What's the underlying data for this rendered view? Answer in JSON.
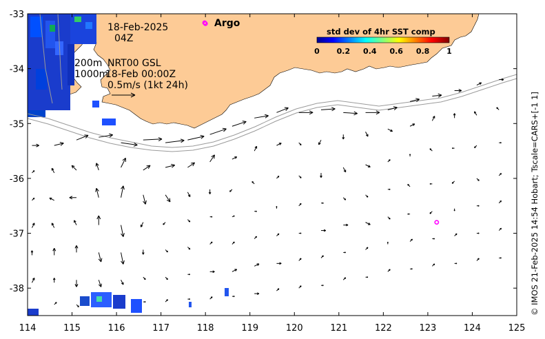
{
  "chart_data": {
    "type": "map",
    "xlim": [
      114,
      125
    ],
    "ylim": [
      -38.5,
      -33
    ],
    "x_ticks": [
      "114",
      "115",
      "116",
      "117",
      "118",
      "119",
      "120",
      "121",
      "122",
      "123",
      "124",
      "125"
    ],
    "y_ticks": [
      "-33",
      "-34",
      "-35",
      "-36",
      "-37",
      "-38"
    ],
    "annotations": {
      "date": "18-Feb-2025",
      "hour": "04Z",
      "depth_line1": "200m",
      "depth_line2": "1000m",
      "product": "NRT00 GSL",
      "vector_time": "18-Feb 00:00Z",
      "scale_label": "0.5m/s (1kt 24h)"
    },
    "colorbar": {
      "title": "std dev of 4hr SST comp",
      "ticks": [
        "0",
        "0.2",
        "0.4",
        "0.6",
        "0.8",
        "1"
      ],
      "colormap": "jet"
    },
    "argo": {
      "label": "Argo",
      "color": "#ff00ff",
      "floats": [
        {
          "lon": 118.0,
          "lat": -33.18
        },
        {
          "lon": 123.2,
          "lat": -36.8
        }
      ]
    },
    "credit": "© IMOS 21-Feb-2025 14:54 Hobart; Tscale=CARS+[-1 1]",
    "colors": {
      "land": "#fdcb96",
      "vectors": "#000000",
      "isobath": "#9a9a9a"
    },
    "current_vectors": [
      {
        "lon": 114.1,
        "lat": -35.4,
        "u": 0.15,
        "v": 0.0
      },
      {
        "lon": 114.6,
        "lat": -35.4,
        "u": 0.2,
        "v": 0.05
      },
      {
        "lon": 115.1,
        "lat": -35.3,
        "u": 0.25,
        "v": 0.1
      },
      {
        "lon": 115.6,
        "lat": -35.25,
        "u": 0.3,
        "v": 0.05
      },
      {
        "lon": 116.1,
        "lat": -35.35,
        "u": 0.35,
        "v": -0.05
      },
      {
        "lon": 116.6,
        "lat": -35.3,
        "u": 0.4,
        "v": 0.02
      },
      {
        "lon": 117.1,
        "lat": -35.35,
        "u": 0.4,
        "v": 0.05
      },
      {
        "lon": 117.6,
        "lat": -35.3,
        "u": 0.35,
        "v": 0.08
      },
      {
        "lon": 118.1,
        "lat": -35.2,
        "u": 0.35,
        "v": 0.12
      },
      {
        "lon": 118.6,
        "lat": -35.05,
        "u": 0.3,
        "v": 0.1
      },
      {
        "lon": 119.1,
        "lat": -34.9,
        "u": 0.3,
        "v": 0.05
      },
      {
        "lon": 119.6,
        "lat": -34.8,
        "u": 0.25,
        "v": 0.1
      },
      {
        "lon": 120.1,
        "lat": -34.8,
        "u": 0.3,
        "v": 0.0
      },
      {
        "lon": 120.6,
        "lat": -34.75,
        "u": 0.3,
        "v": 0.02
      },
      {
        "lon": 121.1,
        "lat": -34.8,
        "u": 0.3,
        "v": -0.02
      },
      {
        "lon": 121.6,
        "lat": -34.8,
        "u": 0.3,
        "v": 0.0
      },
      {
        "lon": 122.1,
        "lat": -34.75,
        "u": 0.2,
        "v": 0.05
      },
      {
        "lon": 122.6,
        "lat": -34.6,
        "u": 0.2,
        "v": 0.05
      },
      {
        "lon": 123.1,
        "lat": -34.5,
        "u": 0.2,
        "v": 0.02
      },
      {
        "lon": 123.6,
        "lat": -34.4,
        "u": 0.15,
        "v": 0.0
      },
      {
        "lon": 124.1,
        "lat": -34.3,
        "u": 0.1,
        "v": 0.05
      },
      {
        "lon": 124.6,
        "lat": -34.2,
        "u": 0.1,
        "v": 0.0
      },
      {
        "lon": 114.1,
        "lat": -35.9,
        "u": 0.05,
        "v": 0.05
      },
      {
        "lon": 114.6,
        "lat": -35.9,
        "u": -0.05,
        "v": 0.1
      },
      {
        "lon": 115.1,
        "lat": -35.85,
        "u": -0.1,
        "v": 0.1
      },
      {
        "lon": 115.6,
        "lat": -35.85,
        "u": -0.05,
        "v": 0.15
      },
      {
        "lon": 116.1,
        "lat": -35.8,
        "u": 0.1,
        "v": 0.2
      },
      {
        "lon": 116.6,
        "lat": -35.85,
        "u": 0.15,
        "v": 0.1
      },
      {
        "lon": 117.1,
        "lat": -35.8,
        "u": 0.2,
        "v": 0.05
      },
      {
        "lon": 117.6,
        "lat": -35.8,
        "u": 0.15,
        "v": 0.1
      },
      {
        "lon": 118.1,
        "lat": -35.7,
        "u": 0.1,
        "v": 0.15
      },
      {
        "lon": 118.6,
        "lat": -35.65,
        "u": 0.1,
        "v": 0.05
      },
      {
        "lon": 119.1,
        "lat": -35.5,
        "u": 0.05,
        "v": 0.1
      },
      {
        "lon": 119.6,
        "lat": -35.4,
        "u": 0.1,
        "v": 0.05
      },
      {
        "lon": 120.1,
        "lat": -35.35,
        "u": 0.05,
        "v": -0.05
      },
      {
        "lon": 120.6,
        "lat": -35.3,
        "u": -0.05,
        "v": -0.1
      },
      {
        "lon": 121.1,
        "lat": -35.2,
        "u": 0.0,
        "v": -0.1
      },
      {
        "lon": 121.6,
        "lat": -35.15,
        "u": 0.05,
        "v": -0.1
      },
      {
        "lon": 122.1,
        "lat": -35.1,
        "u": 0.1,
        "v": -0.05
      },
      {
        "lon": 122.6,
        "lat": -35.05,
        "u": 0.1,
        "v": 0.05
      },
      {
        "lon": 123.1,
        "lat": -34.95,
        "u": 0.05,
        "v": 0.1
      },
      {
        "lon": 123.6,
        "lat": -34.9,
        "u": 0.0,
        "v": 0.1
      },
      {
        "lon": 124.1,
        "lat": -34.85,
        "u": -0.05,
        "v": 0.08
      },
      {
        "lon": 124.6,
        "lat": -34.75,
        "u": -0.05,
        "v": 0.05
      },
      {
        "lon": 114.1,
        "lat": -36.4,
        "u": 0.05,
        "v": 0.05
      },
      {
        "lon": 114.6,
        "lat": -36.4,
        "u": -0.1,
        "v": 0.05
      },
      {
        "lon": 115.1,
        "lat": -36.35,
        "u": -0.15,
        "v": 0.0
      },
      {
        "lon": 115.6,
        "lat": -36.35,
        "u": -0.05,
        "v": 0.2
      },
      {
        "lon": 116.1,
        "lat": -36.35,
        "u": 0.05,
        "v": 0.25
      },
      {
        "lon": 116.6,
        "lat": -36.3,
        "u": 0.05,
        "v": -0.2
      },
      {
        "lon": 117.1,
        "lat": -36.3,
        "u": 0.1,
        "v": -0.15
      },
      {
        "lon": 117.6,
        "lat": -36.25,
        "u": 0.05,
        "v": -0.1
      },
      {
        "lon": 118.1,
        "lat": -36.2,
        "u": 0.0,
        "v": -0.1
      },
      {
        "lon": 118.6,
        "lat": -36.2,
        "u": -0.05,
        "v": -0.05
      },
      {
        "lon": 119.1,
        "lat": -36.1,
        "u": -0.05,
        "v": 0.05
      },
      {
        "lon": 119.6,
        "lat": -36.0,
        "u": 0.05,
        "v": 0.05
      },
      {
        "lon": 120.1,
        "lat": -35.95,
        "u": 0.05,
        "v": -0.05
      },
      {
        "lon": 120.6,
        "lat": -35.9,
        "u": 0.0,
        "v": -0.1
      },
      {
        "lon": 121.1,
        "lat": -35.8,
        "u": 0.05,
        "v": -0.1
      },
      {
        "lon": 121.6,
        "lat": -35.75,
        "u": 0.1,
        "v": -0.05
      },
      {
        "lon": 122.1,
        "lat": -35.7,
        "u": 0.05,
        "v": 0.05
      },
      {
        "lon": 122.6,
        "lat": -35.6,
        "u": 0.0,
        "v": 0.05
      },
      {
        "lon": 123.1,
        "lat": -35.5,
        "u": -0.05,
        "v": 0.05
      },
      {
        "lon": 123.6,
        "lat": -35.45,
        "u": -0.05,
        "v": 0.0
      },
      {
        "lon": 124.1,
        "lat": -35.4,
        "u": -0.05,
        "v": -0.05
      },
      {
        "lon": 124.6,
        "lat": -35.35,
        "u": 0.05,
        "v": 0.0
      },
      {
        "lon": 114.1,
        "lat": -36.9,
        "u": 0.05,
        "v": 0.1
      },
      {
        "lon": 114.6,
        "lat": -36.9,
        "u": -0.05,
        "v": 0.1
      },
      {
        "lon": 115.1,
        "lat": -36.85,
        "u": -0.05,
        "v": 0.1
      },
      {
        "lon": 115.6,
        "lat": -36.85,
        "u": 0.0,
        "v": 0.2
      },
      {
        "lon": 116.1,
        "lat": -36.85,
        "u": 0.05,
        "v": -0.25
      },
      {
        "lon": 116.6,
        "lat": -36.8,
        "u": -0.05,
        "v": -0.1
      },
      {
        "lon": 117.1,
        "lat": -36.8,
        "u": -0.05,
        "v": -0.05
      },
      {
        "lon": 117.6,
        "lat": -36.75,
        "u": 0.05,
        "v": -0.05
      },
      {
        "lon": 118.1,
        "lat": -36.7,
        "u": 0.05,
        "v": 0.0
      },
      {
        "lon": 118.6,
        "lat": -36.7,
        "u": 0.05,
        "v": 0.02
      },
      {
        "lon": 119.1,
        "lat": -36.6,
        "u": 0.05,
        "v": 0.0
      },
      {
        "lon": 119.6,
        "lat": -36.55,
        "u": 0.0,
        "v": 0.05
      },
      {
        "lon": 120.1,
        "lat": -36.5,
        "u": 0.05,
        "v": 0.05
      },
      {
        "lon": 120.6,
        "lat": -36.45,
        "u": 0.05,
        "v": 0.0
      },
      {
        "lon": 121.1,
        "lat": -36.35,
        "u": 0.05,
        "v": -0.05
      },
      {
        "lon": 121.6,
        "lat": -36.3,
        "u": 0.05,
        "v": -0.05
      },
      {
        "lon": 122.1,
        "lat": -36.2,
        "u": 0.05,
        "v": 0.0
      },
      {
        "lon": 122.6,
        "lat": -36.15,
        "u": -0.05,
        "v": 0.05
      },
      {
        "lon": 123.1,
        "lat": -36.1,
        "u": -0.05,
        "v": 0.0
      },
      {
        "lon": 123.6,
        "lat": -36.05,
        "u": -0.05,
        "v": -0.05
      },
      {
        "lon": 124.1,
        "lat": -36.0,
        "u": 0.05,
        "v": -0.05
      },
      {
        "lon": 124.6,
        "lat": -35.95,
        "u": 0.05,
        "v": 0.05
      },
      {
        "lon": 114.1,
        "lat": -37.4,
        "u": 0.0,
        "v": 0.1
      },
      {
        "lon": 114.6,
        "lat": -37.4,
        "u": 0.0,
        "v": 0.15
      },
      {
        "lon": 115.1,
        "lat": -37.35,
        "u": 0.0,
        "v": 0.15
      },
      {
        "lon": 115.6,
        "lat": -37.35,
        "u": 0.05,
        "v": -0.2
      },
      {
        "lon": 116.1,
        "lat": -37.35,
        "u": 0.05,
        "v": -0.25
      },
      {
        "lon": 116.6,
        "lat": -37.3,
        "u": 0.0,
        "v": -0.1
      },
      {
        "lon": 117.1,
        "lat": -37.3,
        "u": 0.05,
        "v": -0.05
      },
      {
        "lon": 117.6,
        "lat": -37.25,
        "u": 0.05,
        "v": -0.05
      },
      {
        "lon": 118.1,
        "lat": -37.2,
        "u": 0.05,
        "v": 0.05
      },
      {
        "lon": 118.6,
        "lat": -37.2,
        "u": 0.05,
        "v": 0.05
      },
      {
        "lon": 119.1,
        "lat": -37.1,
        "u": 0.05,
        "v": 0.05
      },
      {
        "lon": 119.6,
        "lat": -37.05,
        "u": 0.05,
        "v": 0.05
      },
      {
        "lon": 120.1,
        "lat": -37.0,
        "u": 0.05,
        "v": 0.0
      },
      {
        "lon": 120.6,
        "lat": -36.95,
        "u": 0.1,
        "v": 0.0
      },
      {
        "lon": 121.1,
        "lat": -36.85,
        "u": 0.1,
        "v": 0.0
      },
      {
        "lon": 121.6,
        "lat": -36.8,
        "u": 0.1,
        "v": -0.05
      },
      {
        "lon": 122.1,
        "lat": -36.7,
        "u": 0.05,
        "v": -0.05
      },
      {
        "lon": 122.6,
        "lat": -36.65,
        "u": -0.05,
        "v": 0.0
      },
      {
        "lon": 123.1,
        "lat": -36.6,
        "u": -0.05,
        "v": -0.05
      },
      {
        "lon": 123.6,
        "lat": -36.55,
        "u": 0.0,
        "v": -0.05
      },
      {
        "lon": 124.1,
        "lat": -36.5,
        "u": 0.05,
        "v": 0.0
      },
      {
        "lon": 124.6,
        "lat": -36.45,
        "u": 0.05,
        "v": 0.05
      },
      {
        "lon": 114.1,
        "lat": -37.9,
        "u": 0.05,
        "v": 0.1
      },
      {
        "lon": 114.6,
        "lat": -37.9,
        "u": 0.0,
        "v": 0.1
      },
      {
        "lon": 115.1,
        "lat": -37.85,
        "u": 0.0,
        "v": -0.15
      },
      {
        "lon": 115.6,
        "lat": -37.85,
        "u": 0.05,
        "v": -0.15
      },
      {
        "lon": 116.1,
        "lat": -37.85,
        "u": 0.05,
        "v": -0.1
      },
      {
        "lon": 116.6,
        "lat": -37.8,
        "u": 0.05,
        "v": -0.05
      },
      {
        "lon": 117.1,
        "lat": -37.8,
        "u": 0.05,
        "v": -0.05
      },
      {
        "lon": 117.6,
        "lat": -37.75,
        "u": 0.05,
        "v": 0.0
      },
      {
        "lon": 118.1,
        "lat": -37.7,
        "u": 0.1,
        "v": 0.0
      },
      {
        "lon": 118.6,
        "lat": -37.7,
        "u": 0.1,
        "v": 0.05
      },
      {
        "lon": 119.1,
        "lat": -37.6,
        "u": 0.1,
        "v": 0.05
      },
      {
        "lon": 119.6,
        "lat": -37.55,
        "u": 0.1,
        "v": 0.0
      },
      {
        "lon": 120.1,
        "lat": -37.5,
        "u": 0.05,
        "v": 0.05
      },
      {
        "lon": 120.6,
        "lat": -37.45,
        "u": 0.05,
        "v": 0.05
      },
      {
        "lon": 121.1,
        "lat": -37.35,
        "u": 0.05,
        "v": 0.0
      },
      {
        "lon": 121.6,
        "lat": -37.3,
        "u": 0.05,
        "v": 0.05
      },
      {
        "lon": 122.1,
        "lat": -37.2,
        "u": 0.0,
        "v": 0.05
      },
      {
        "lon": 122.6,
        "lat": -37.15,
        "u": 0.05,
        "v": 0.05
      },
      {
        "lon": 123.1,
        "lat": -37.1,
        "u": 0.05,
        "v": 0.0
      },
      {
        "lon": 123.6,
        "lat": -37.05,
        "u": 0.05,
        "v": 0.05
      },
      {
        "lon": 124.1,
        "lat": -37.0,
        "u": 0.05,
        "v": 0.0
      },
      {
        "lon": 124.6,
        "lat": -36.95,
        "u": 0.05,
        "v": 0.05
      },
      {
        "lon": 114.6,
        "lat": -38.3,
        "u": 0.05,
        "v": 0.05
      },
      {
        "lon": 115.1,
        "lat": -38.3,
        "u": 0.05,
        "v": -0.05
      },
      {
        "lon": 116.6,
        "lat": -38.25,
        "u": 0.05,
        "v": 0.0
      },
      {
        "lon": 117.1,
        "lat": -38.25,
        "u": 0.05,
        "v": 0.05
      },
      {
        "lon": 117.6,
        "lat": -38.2,
        "u": 0.05,
        "v": 0.0
      },
      {
        "lon": 118.1,
        "lat": -38.2,
        "u": 0.05,
        "v": 0.05
      },
      {
        "lon": 118.6,
        "lat": -38.15,
        "u": 0.05,
        "v": 0.0
      },
      {
        "lon": 119.1,
        "lat": -38.1,
        "u": 0.1,
        "v": 0.0
      },
      {
        "lon": 119.6,
        "lat": -38.05,
        "u": 0.05,
        "v": 0.05
      },
      {
        "lon": 120.1,
        "lat": -38.0,
        "u": 0.05,
        "v": 0.05
      },
      {
        "lon": 120.6,
        "lat": -37.95,
        "u": 0.05,
        "v": 0.0
      },
      {
        "lon": 121.1,
        "lat": -37.85,
        "u": 0.05,
        "v": 0.05
      },
      {
        "lon": 121.6,
        "lat": -37.8,
        "u": 0.05,
        "v": 0.0
      },
      {
        "lon": 122.1,
        "lat": -37.7,
        "u": 0.05,
        "v": 0.05
      },
      {
        "lon": 122.6,
        "lat": -37.65,
        "u": 0.05,
        "v": 0.0
      },
      {
        "lon": 123.1,
        "lat": -37.6,
        "u": 0.05,
        "v": 0.05
      },
      {
        "lon": 123.6,
        "lat": -37.55,
        "u": 0.05,
        "v": 0.0
      },
      {
        "lon": 124.1,
        "lat": -37.5,
        "u": 0.05,
        "v": 0.05
      },
      {
        "lon": 124.6,
        "lat": -37.45,
        "u": 0.05,
        "v": 0.0
      }
    ]
  }
}
